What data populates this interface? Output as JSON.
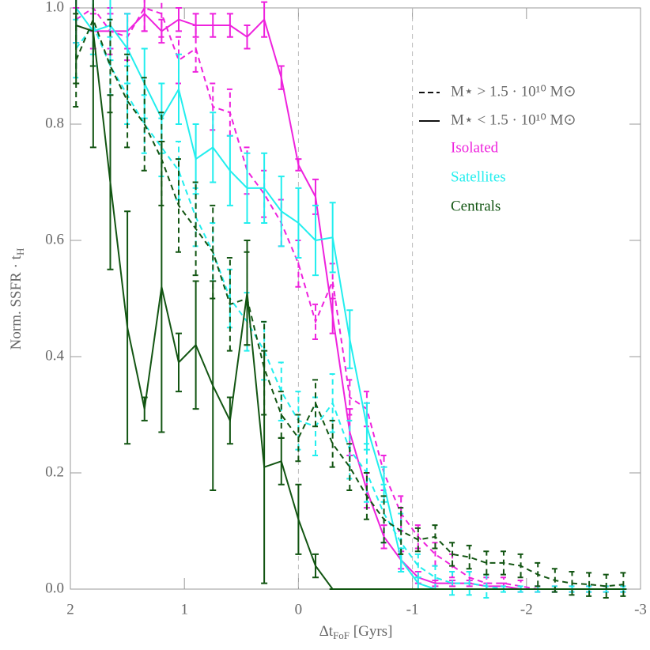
{
  "chart_data": {
    "type": "errorline",
    "xlabel": {
      "text": "Δt",
      "sub": "FoF",
      "post": " [Gyrs]"
    },
    "ylabel": {
      "text": "Norm. SSFR · t",
      "sub": "H"
    },
    "xlim": [
      2,
      -3
    ],
    "ylim": [
      0,
      1
    ],
    "xticks": [
      2,
      1,
      0,
      -1,
      -2,
      -3
    ],
    "yticks": [
      {
        "value": 0,
        "label": "0.0"
      },
      0.2,
      0.4,
      0.6,
      0.8,
      {
        "value": 1,
        "label": "1.0"
      }
    ],
    "vlines": [
      0,
      -1
    ],
    "mass_legend": [
      {
        "label": "M⋆ > 1.5 · 10¹⁰ M⊙",
        "style": "dashed"
      },
      {
        "label": "M⋆ < 1.5 · 10¹⁰ M⊙",
        "style": "solid"
      }
    ],
    "groups": [
      {
        "name": "Isolated",
        "color": "#ee22dd"
      },
      {
        "name": "Satellites",
        "color": "#22eeee"
      },
      {
        "name": "Centrals",
        "color": "#125512"
      }
    ],
    "x": [
      1.95,
      1.8,
      1.65,
      1.5,
      1.35,
      1.2,
      1.05,
      0.9,
      0.75,
      0.6,
      0.45,
      0.3,
      0.15,
      0,
      -0.15,
      -0.3,
      -0.45,
      -0.6,
      -0.75,
      -0.9,
      -1.05,
      -1.2,
      -1.35,
      -1.5,
      -1.65,
      -1.8,
      -1.95,
      -2.1,
      -2.25,
      -2.4,
      -2.55,
      -2.7,
      -2.85
    ],
    "series": [
      {
        "group": 0,
        "mass": 0,
        "values": [
          0.98,
          1.0,
          0.96,
          0.95,
          1.0,
          0.99,
          0.91,
          0.93,
          0.83,
          0.82,
          0.72,
          0.68,
          0.63,
          0.56,
          0.46,
          0.53,
          0.33,
          0.31,
          0.2,
          0.13,
          0.09,
          0.06,
          0.04,
          0.02,
          0.01,
          0.01,
          0.005,
          0,
          0,
          0,
          0,
          0,
          0
        ],
        "errors": [
          0.04,
          0.04,
          0.04,
          0.04,
          0.04,
          0.04,
          0.04,
          0.04,
          0.04,
          0.04,
          0.04,
          0.04,
          0.04,
          0.04,
          0.03,
          0.03,
          0.03,
          0.03,
          0.03,
          0.03,
          0.02,
          0.02,
          0.02,
          0.01,
          0.01,
          0.01,
          0.01,
          0.005,
          0.005,
          0.005,
          0.005,
          0.005,
          0.005
        ]
      },
      {
        "group": 0,
        "mass": 1,
        "values": [
          0.97,
          0.96,
          0.96,
          0.96,
          0.99,
          0.96,
          0.98,
          0.97,
          0.97,
          0.97,
          0.95,
          0.98,
          0.88,
          0.73,
          0.675,
          0.47,
          0.27,
          0.17,
          0.09,
          0.05,
          0.02,
          0.01,
          0.01,
          0.01,
          0.005,
          0.005,
          0,
          0,
          0,
          0,
          0,
          0,
          0
        ],
        "errors": [
          0.03,
          0.03,
          0.03,
          0.03,
          0.03,
          0.02,
          0.02,
          0.02,
          0.02,
          0.02,
          0.02,
          0.03,
          0.02,
          0.01,
          0.03,
          0.03,
          0.04,
          0.03,
          0.02,
          0.015,
          0.01,
          0.005,
          0.005,
          0.005,
          0.005,
          0.005,
          0,
          0,
          0,
          0,
          0,
          0,
          0
        ]
      },
      {
        "group": 1,
        "mass": 0,
        "values": [
          0.93,
          0.97,
          0.9,
          0.85,
          0.8,
          0.76,
          0.72,
          0.64,
          0.58,
          0.5,
          0.46,
          0.41,
          0.34,
          0.29,
          0.28,
          0.32,
          0.24,
          0.2,
          0.13,
          0.08,
          0.04,
          0.02,
          0.01,
          0.01,
          0.005,
          0,
          0,
          0,
          0,
          0,
          0,
          0,
          0
        ],
        "errors": [
          0.05,
          0.05,
          0.05,
          0.05,
          0.05,
          0.05,
          0.05,
          0.05,
          0.05,
          0.05,
          0.05,
          0.05,
          0.05,
          0.05,
          0.05,
          0.05,
          0.05,
          0.05,
          0.05,
          0.05,
          0.02,
          0.02,
          0.02,
          0.02,
          0.02,
          0.005,
          0.005,
          0.005,
          0.005,
          0.005,
          0.005,
          0.005,
          0.005
        ]
      },
      {
        "group": 1,
        "mass": 1,
        "values": [
          1.0,
          0.96,
          0.97,
          0.93,
          0.87,
          0.81,
          0.86,
          0.74,
          0.76,
          0.72,
          0.69,
          0.69,
          0.65,
          0.63,
          0.6,
          0.605,
          0.43,
          0.28,
          0.18,
          0.05,
          0.01,
          0,
          0,
          0,
          0,
          0,
          0,
          0,
          0,
          0,
          0,
          0,
          0
        ],
        "errors": [
          0.06,
          0.06,
          0.06,
          0.06,
          0.06,
          0.06,
          0.06,
          0.06,
          0.06,
          0.06,
          0.06,
          0.06,
          0.06,
          0.06,
          0.06,
          0.06,
          0.05,
          0.04,
          0.03,
          0.02,
          0.01,
          0,
          0,
          0,
          0,
          0,
          0,
          0,
          0,
          0,
          0,
          0,
          0
        ]
      },
      {
        "group": 2,
        "mass": 0,
        "values": [
          0.91,
          0.98,
          0.9,
          0.84,
          0.8,
          0.74,
          0.66,
          0.62,
          0.58,
          0.49,
          0.5,
          0.38,
          0.3,
          0.26,
          0.32,
          0.25,
          0.21,
          0.16,
          0.12,
          0.1,
          0.085,
          0.09,
          0.06,
          0.055,
          0.045,
          0.045,
          0.04,
          0.025,
          0.015,
          0.01,
          0.008,
          0.005,
          0.008
        ],
        "errors": [
          0.08,
          0.08,
          0.08,
          0.08,
          0.08,
          0.08,
          0.08,
          0.08,
          0.08,
          0.08,
          0.08,
          0.08,
          0.04,
          0.04,
          0.04,
          0.04,
          0.04,
          0.04,
          0.04,
          0.04,
          0.02,
          0.02,
          0.02,
          0.02,
          0.02,
          0.02,
          0.02,
          0.02,
          0.02,
          0.02,
          0.02,
          0.02,
          0.02
        ]
      },
      {
        "group": 2,
        "mass": 1,
        "values": [
          0.97,
          0.96,
          0.7,
          0.45,
          0.31,
          0.52,
          0.39,
          0.42,
          0.35,
          0.29,
          0.51,
          0.21,
          0.22,
          0.12,
          0.04,
          0,
          0,
          0,
          0,
          0,
          0,
          0,
          0,
          0,
          0,
          0,
          0,
          0,
          0,
          0,
          0,
          0,
          0
        ],
        "errors": [
          0.1,
          0.2,
          0.15,
          0.2,
          0.02,
          0.25,
          0.05,
          0.11,
          0.18,
          0.04,
          0.09,
          0.2,
          0.04,
          0.06,
          0.02,
          0,
          0,
          0,
          0,
          0,
          0,
          0,
          0,
          0,
          0,
          0,
          0,
          0,
          0,
          0,
          0,
          0,
          0
        ]
      }
    ]
  }
}
